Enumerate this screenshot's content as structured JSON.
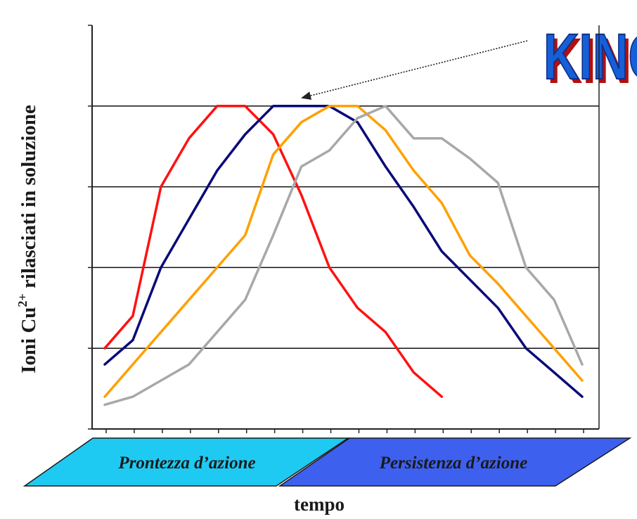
{
  "chart_data": {
    "type": "line",
    "title": "",
    "xlabel": "tempo",
    "ylabel": {
      "prefix": "Ioni Cu",
      "superscript": "2+",
      "suffix": " rilasciati in soluzione"
    },
    "x": [
      0,
      1,
      2,
      3,
      4,
      5,
      6,
      7,
      8,
      9,
      10,
      11,
      12,
      13,
      14,
      15,
      16,
      17
    ],
    "xlim": [
      -0.45,
      17.6
    ],
    "ylim": [
      0,
      5
    ],
    "y_gridlines": [
      1,
      2,
      3,
      4
    ],
    "series": [
      {
        "color": "#ff1111",
        "values": [
          1.0,
          1.4,
          3.0,
          3.6,
          4.0,
          4.0,
          3.65,
          2.9,
          2.0,
          1.5,
          1.2,
          0.7,
          0.4,
          null,
          null,
          null,
          null,
          null
        ]
      },
      {
        "color": "#0a0a78",
        "values": [
          0.8,
          1.1,
          2.0,
          2.6,
          3.2,
          3.65,
          4.0,
          4.0,
          4.0,
          3.8,
          3.25,
          2.75,
          2.2,
          1.85,
          1.5,
          1.0,
          0.7,
          0.4
        ]
      },
      {
        "color": "#ffa000",
        "values": [
          0.4,
          0.8,
          1.2,
          1.6,
          2.0,
          2.4,
          3.4,
          3.8,
          4.0,
          4.0,
          3.7,
          3.2,
          2.8,
          2.15,
          1.8,
          1.4,
          1.0,
          0.6
        ]
      },
      {
        "color": "#a8a8a8",
        "values": [
          0.3,
          0.4,
          0.6,
          0.8,
          1.2,
          1.6,
          2.4,
          3.25,
          3.45,
          3.85,
          4.0,
          3.6,
          3.6,
          3.35,
          3.05,
          2.0,
          1.6,
          0.8
        ]
      }
    ],
    "annotation": {
      "type": "arrow",
      "target": {
        "x": 7.3,
        "y": 4.1
      }
    },
    "phases": [
      {
        "label": "Prontezza d’azione",
        "color": "#1fcaf2"
      },
      {
        "label": "Persistenza d’azione",
        "color": "#3e60ee"
      }
    ],
    "logo": {
      "text": "KINO",
      "color": "#1560d8",
      "shadow": "#b01010"
    }
  }
}
